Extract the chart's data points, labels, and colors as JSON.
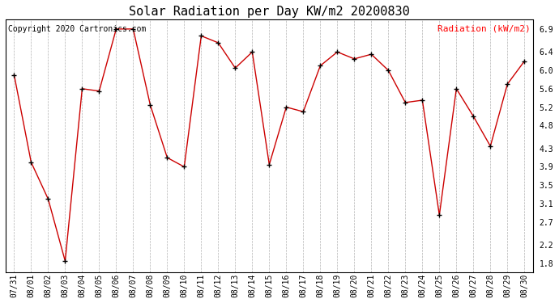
{
  "title": "Solar Radiation per Day KW/m2 20200830",
  "copyright_text": "Copyright 2020 Cartronics.com",
  "legend_label": "Radiation (kW/m2)",
  "dates": [
    "07/31",
    "08/01",
    "08/02",
    "08/03",
    "08/04",
    "08/05",
    "08/06",
    "08/07",
    "08/08",
    "08/09",
    "08/10",
    "08/11",
    "08/12",
    "08/13",
    "08/14",
    "08/15",
    "08/16",
    "08/17",
    "08/18",
    "08/19",
    "08/20",
    "08/21",
    "08/22",
    "08/23",
    "08/24",
    "08/25",
    "08/26",
    "08/27",
    "08/28",
    "08/29",
    "08/30"
  ],
  "values": [
    5.9,
    4.0,
    3.2,
    1.85,
    5.6,
    5.55,
    6.9,
    6.9,
    5.25,
    4.1,
    3.9,
    6.75,
    6.6,
    6.05,
    6.4,
    3.95,
    5.2,
    5.1,
    6.1,
    6.4,
    6.25,
    6.35,
    6.0,
    5.3,
    5.35,
    2.85,
    5.6,
    5.0,
    4.35,
    5.7,
    6.2
  ],
  "line_color": "#cc0000",
  "marker_color": "#000000",
  "background_color": "#ffffff",
  "grid_color": "#aaaaaa",
  "title_fontsize": 11,
  "copyright_fontsize": 7,
  "legend_fontsize": 8,
  "tick_fontsize": 7,
  "ylim": [
    1.6,
    7.1
  ],
  "yticks": [
    1.8,
    2.2,
    2.7,
    3.1,
    3.5,
    3.9,
    4.3,
    4.8,
    5.2,
    5.6,
    6.0,
    6.4,
    6.9
  ]
}
